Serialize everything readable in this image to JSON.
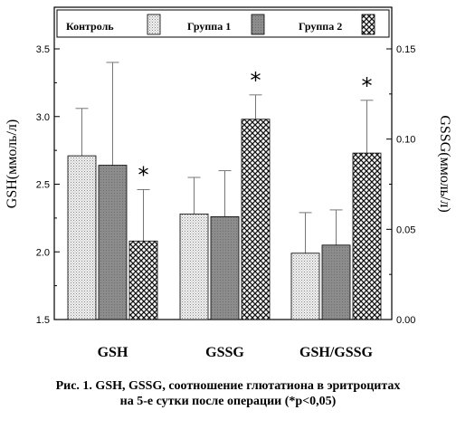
{
  "chart_data": {
    "type": "bar",
    "categories": [
      "GSH",
      "GSSG",
      "GSH/GSSG"
    ],
    "series": [
      {
        "name": "Контроль",
        "pattern": "dots",
        "values": [
          2.71,
          2.28,
          1.99
        ],
        "errors": [
          0.35,
          0.27,
          0.3
        ]
      },
      {
        "name": "Группа 1",
        "pattern": "solid-gray",
        "values": [
          2.64,
          2.26,
          2.05
        ],
        "errors": [
          0.76,
          0.34,
          0.26
        ]
      },
      {
        "name": "Группа 2",
        "pattern": "crosshatch",
        "values": [
          2.08,
          2.98,
          2.73
        ],
        "errors": [
          0.38,
          0.18,
          0.39
        ]
      }
    ],
    "significance": [
      [
        false,
        false,
        true
      ],
      [
        false,
        false,
        true
      ],
      [
        false,
        false,
        true
      ]
    ],
    "significance_marker": "*",
    "ylabel_left": "GSH(ммоль/л)",
    "ylabel_right": "GSSG(ммоль/л)",
    "ylim_left": [
      1.5,
      3.5
    ],
    "ylim_right": [
      0.0,
      0.15
    ],
    "yticks_left": [
      "1.5",
      "2.0",
      "2.5",
      "3.0",
      "3.5"
    ],
    "yticks_right": [
      "0.00",
      "0.05",
      "0.10",
      "0.15"
    ],
    "legend_position": "top",
    "grid": false
  },
  "caption": {
    "line1": "Рис. 1. GSH, GSSG, соотношение глютатиона в эритроцитах",
    "line2": "на 5-е сутки после операции (*p<0,05)"
  }
}
